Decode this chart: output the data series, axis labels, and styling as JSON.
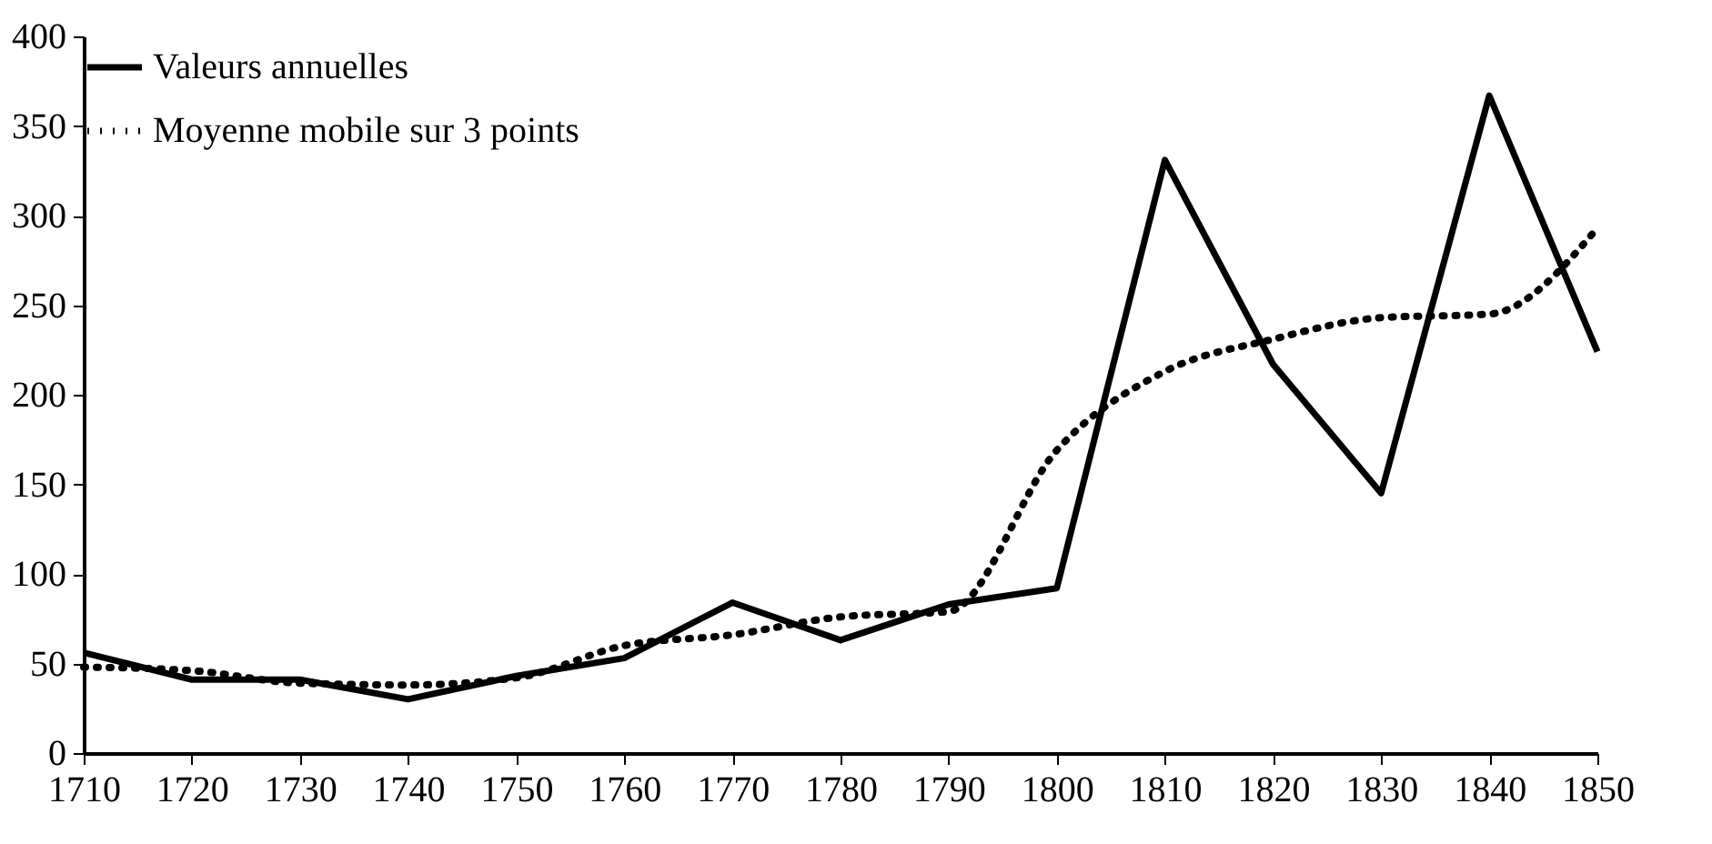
{
  "chart_data": {
    "type": "line",
    "x": [
      1710,
      1720,
      1730,
      1740,
      1750,
      1760,
      1770,
      1780,
      1790,
      1800,
      1810,
      1820,
      1830,
      1840,
      1850
    ],
    "series": [
      {
        "name": "Valeurs annuelles",
        "color": "#000000",
        "line_style": "solid",
        "values": [
          56,
          41,
          41,
          30,
          43,
          53,
          84,
          63,
          83,
          92,
          331,
          217,
          145,
          367,
          224
        ]
      },
      {
        "name": "Moyenne mobile sur 3 points",
        "color": "#000000",
        "line_style": "dotted",
        "values": [
          48,
          46,
          39,
          38,
          42,
          60,
          66,
          76,
          79,
          169,
          213,
          231,
          243,
          245,
          293
        ]
      }
    ],
    "xlim": [
      1710,
      1850
    ],
    "xticks": [
      1710,
      1720,
      1730,
      1740,
      1750,
      1760,
      1770,
      1780,
      1790,
      1800,
      1810,
      1820,
      1830,
      1840,
      1850
    ],
    "ylim": [
      0,
      400
    ],
    "yticks": [
      0,
      50,
      100,
      150,
      200,
      250,
      300,
      350,
      400
    ],
    "grid": false,
    "legend": "top left",
    "marker": "none"
  }
}
